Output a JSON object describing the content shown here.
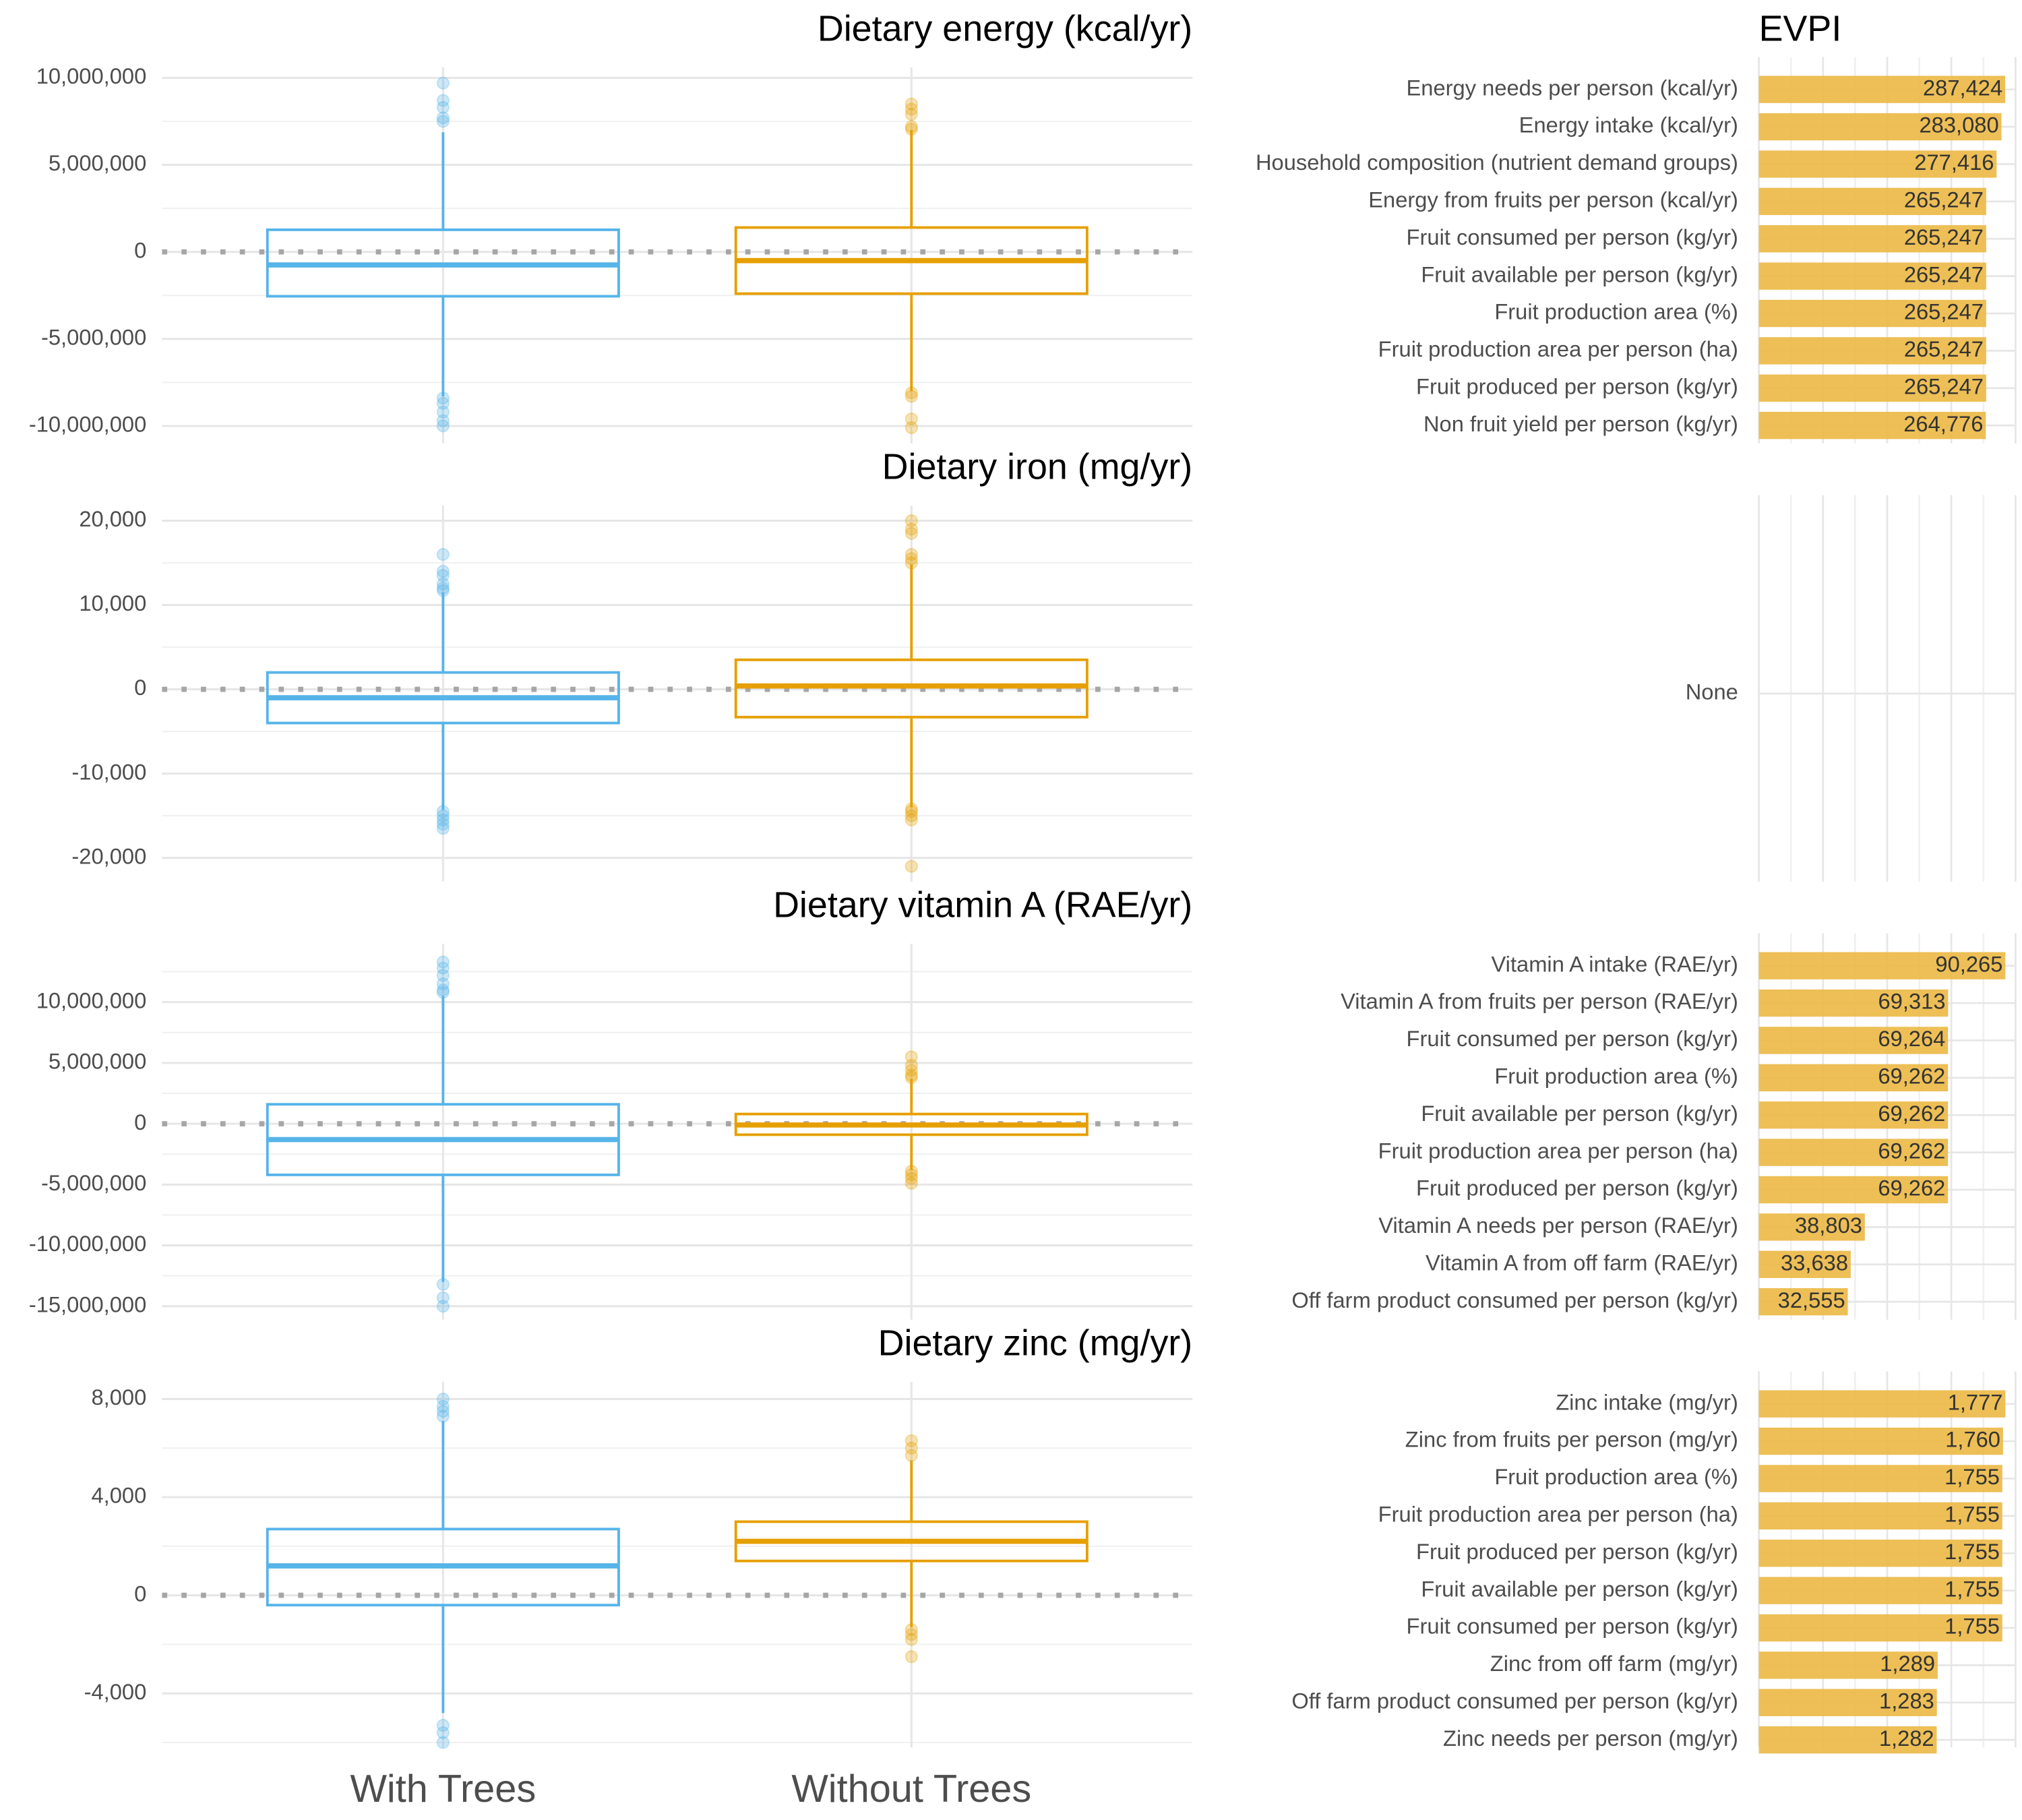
{
  "chart_data": [
    {
      "type": "box",
      "title": "Dietary energy (kcal/yr)",
      "ylim": [
        -11000000,
        10600000
      ],
      "yticks": [
        {
          "value": -10000000,
          "label": "-10,000,000"
        },
        {
          "value": -5000000,
          "label": "-5,000,000"
        },
        0,
        {
          "value": 5000000,
          "label": "5,000,000"
        },
        {
          "value": 10000000,
          "label": "10,000,000"
        }
      ],
      "reference_line": 0,
      "boxes": [
        {
          "color": "#56B4E9",
          "lower_whisker": -8300000,
          "q1": -2550000,
          "median": -750000,
          "q3": 1270000,
          "upper_whisker": 6870000,
          "outliers": [
            9700000,
            8700000,
            8300000,
            7700000,
            7500000,
            -8400000,
            -8700000,
            -9200000,
            -9700000,
            -10000000
          ]
        },
        {
          "color": "#E69F00",
          "lower_whisker": -8000000,
          "q1": -2400000,
          "median": -500000,
          "q3": 1400000,
          "upper_whisker": 7000000,
          "outliers": [
            8500000,
            8200000,
            7900000,
            7200000,
            7050000,
            -8100000,
            -8300000,
            -9600000,
            -10100000
          ]
        }
      ]
    },
    {
      "type": "bar",
      "title": "EVPI",
      "xlim": [
        0,
        299500
      ],
      "color": "#EBB844",
      "categories": [
        "Energy needs per person (kcal/yr)",
        "Energy intake (kcal/yr)",
        "Household composition (nutrient demand groups)",
        "Energy from fruits per person (kcal/yr)",
        "Fruit consumed per person (kg/yr)",
        "Fruit available per person (kg/yr)",
        "Fruit production area (%)",
        "Fruit production area per person (ha)",
        "Fruit produced per person (kg/yr)",
        "Non fruit yield per person (kg/yr)"
      ],
      "values": [
        287424,
        283080,
        277416,
        265247,
        265247,
        265247,
        265247,
        265247,
        265247,
        264776
      ],
      "value_labels": [
        "287,424",
        "283,080",
        "277,416",
        "265,247",
        "265,247",
        "265,247",
        "265,247",
        "265,247",
        "265,247",
        "264,776"
      ]
    },
    {
      "type": "box",
      "title": "Dietary iron (mg/yr)",
      "ylim": [
        -22800,
        21800
      ],
      "yticks": [
        {
          "value": -20000,
          "label": "-20,000"
        },
        {
          "value": -10000,
          "label": "-10,000"
        },
        0,
        {
          "value": 10000,
          "label": "10,000"
        },
        {
          "value": 20000,
          "label": "20,000"
        }
      ],
      "reference_line": 0,
      "boxes": [
        {
          "color": "#56B4E9",
          "lower_whisker": -14300,
          "q1": -4000,
          "median": -1000,
          "q3": 2000,
          "upper_whisker": 11500,
          "outliers": [
            16000,
            14000,
            13500,
            12500,
            12000,
            11700,
            -14500,
            -15000,
            -15500,
            -16000,
            -16500
          ]
        },
        {
          "color": "#E69F00",
          "lower_whisker": -14000,
          "q1": -3300,
          "median": 400,
          "q3": 3500,
          "upper_whisker": 14800,
          "outliers": [
            20000,
            19000,
            18500,
            16000,
            15500,
            15000,
            -14200,
            -14500,
            -15000,
            -15500,
            -21000
          ]
        }
      ]
    },
    {
      "type": "bar",
      "xlim": [
        0,
        1
      ],
      "color": "#EBB844",
      "categories": [
        "None"
      ],
      "values": [
        null
      ]
    },
    {
      "type": "box",
      "title": "Dietary vitamin A (RAE/yr)",
      "ylim": [
        -16100000,
        14800000
      ],
      "yticks": [
        {
          "value": -15000000,
          "label": "-15,000,000"
        },
        {
          "value": -10000000,
          "label": "-10,000,000"
        },
        {
          "value": -5000000,
          "label": "-5,000,000"
        },
        0,
        {
          "value": 5000000,
          "label": "5,000,000"
        },
        {
          "value": 10000000,
          "label": "10,000,000"
        }
      ],
      "reference_line": 0,
      "boxes": [
        {
          "color": "#56B4E9",
          "lower_whisker": -13000000,
          "q1": -4200000,
          "median": -1300000,
          "q3": 1600000,
          "upper_whisker": 10500000,
          "outliers": [
            13300000,
            12800000,
            12200000,
            11500000,
            11000000,
            10800000,
            -13200000,
            -14300000,
            -15000000
          ]
        },
        {
          "color": "#E69F00",
          "lower_whisker": -3800000,
          "q1": -900000,
          "median": -100000,
          "q3": 800000,
          "upper_whisker": 3700000,
          "outliers": [
            5500000,
            4800000,
            4400000,
            4000000,
            3800000,
            -3900000,
            -4200000,
            -4500000,
            -4900000
          ]
        }
      ]
    },
    {
      "type": "bar",
      "xlim": [
        0,
        94000
      ],
      "color": "#EBB844",
      "categories": [
        "Vitamin A intake (RAE/yr)",
        "Vitamin A from fruits per person (RAE/yr)",
        "Fruit consumed per person (kg/yr)",
        "Fruit production area (%)",
        "Fruit available per person (kg/yr)",
        "Fruit production area per person (ha)",
        "Fruit produced per person (kg/yr)",
        "Vitamin A needs per person (RAE/yr)",
        "Vitamin A from off farm (RAE/yr)",
        "Off farm product consumed per person (kg/yr)"
      ],
      "values": [
        90265,
        69313,
        69264,
        69262,
        69262,
        69262,
        69262,
        38803,
        33638,
        32555
      ],
      "value_labels": [
        "90,265",
        "69,313",
        "69,264",
        "69,262",
        "69,262",
        "69,262",
        "69,262",
        "38,803",
        "33,638",
        "32,555"
      ]
    },
    {
      "type": "box",
      "title": "Dietary zinc (mg/yr)",
      "ylim": [
        -6200,
        8700
      ],
      "yticks": [
        {
          "value": -4000,
          "label": "-4,000"
        },
        0,
        {
          "value": 4000,
          "label": "4,000"
        },
        {
          "value": 8000,
          "label": "8,000"
        }
      ],
      "reference_line": 0,
      "categories": [
        "With Trees",
        "Without Trees"
      ],
      "boxes": [
        {
          "color": "#56B4E9",
          "lower_whisker": -4800,
          "q1": -400,
          "median": 1200,
          "q3": 2700,
          "upper_whisker": 7100,
          "outliers": [
            8000,
            7700,
            7500,
            7300,
            -5300,
            -5600,
            -6000
          ]
        },
        {
          "color": "#E69F00",
          "lower_whisker": -1300,
          "q1": 1400,
          "median": 2200,
          "q3": 3000,
          "upper_whisker": 5500,
          "outliers": [
            6300,
            6000,
            5700,
            -1400,
            -1600,
            -1800,
            -2500
          ]
        }
      ]
    },
    {
      "type": "bar",
      "xlim": [
        0,
        1850
      ],
      "color": "#EBB844",
      "categories": [
        "Zinc intake (mg/yr)",
        "Zinc from fruits per person (mg/yr)",
        "Fruit production area (%)",
        "Fruit production area per person (ha)",
        "Fruit produced per person (kg/yr)",
        "Fruit available per person (kg/yr)",
        "Fruit consumed per person (kg/yr)",
        "Zinc from off farm (mg/yr)",
        "Off farm product consumed per person (kg/yr)",
        "Zinc needs per person (mg/yr)"
      ],
      "values": [
        1777,
        1760,
        1755,
        1755,
        1755,
        1755,
        1755,
        1289,
        1283,
        1282
      ],
      "value_labels": [
        "1,777",
        "1,760",
        "1,755",
        "1,755",
        "1,755",
        "1,755",
        "1,755",
        "1,289",
        "1,283",
        "1,282"
      ]
    }
  ]
}
